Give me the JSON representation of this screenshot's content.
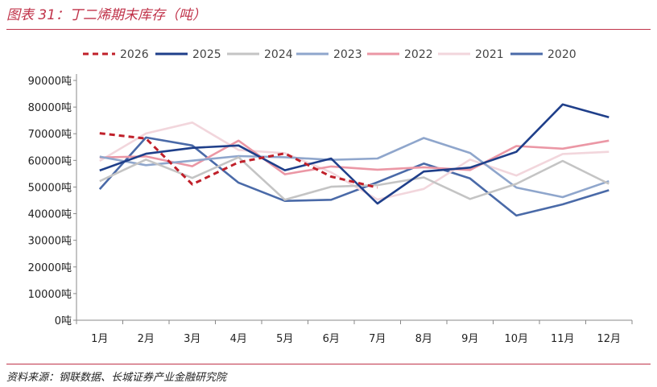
{
  "figure": {
    "title": "图表 31：丁二烯期末库存（吨）",
    "source": "资料来源：钢联数据、长城证券产业金融研究院"
  },
  "colors": {
    "title_red": "#c0334a",
    "s2026": "#c0202a",
    "s2025": "#1f3f8a",
    "s2024": "#c4c4c4",
    "s2023": "#8fa6cc",
    "s2022": "#eb97a5",
    "s2021": "#f2d6dc",
    "s2020": "#4a6aa8"
  },
  "chart_data": {
    "type": "line",
    "xlabel": "",
    "ylabel": "",
    "categories": [
      "1月",
      "2月",
      "3月",
      "4月",
      "5月",
      "6月",
      "7月",
      "8月",
      "9月",
      "10月",
      "11月",
      "12月"
    ],
    "ylim": [
      0,
      90000
    ],
    "yticks": [
      0,
      10000,
      20000,
      30000,
      40000,
      50000,
      60000,
      70000,
      80000,
      90000
    ],
    "ytick_suffix": "吨",
    "legend_position": "top",
    "series": [
      {
        "name": "2026",
        "color": "#c0202a",
        "dashed": true,
        "values": [
          70200,
          68200,
          null,
          null,
          null,
          null,
          null,
          null,
          null,
          null,
          null,
          null
        ]
      },
      {
        "name": "2025",
        "color": "#1f3f8a",
        "values": [
          56200,
          62500,
          64700,
          65600,
          56300,
          60700,
          43800,
          55800,
          57300,
          63200,
          81000,
          76200
        ]
      },
      {
        "name": "2024",
        "color": "#c4c4c4",
        "values": [
          52200,
          60300,
          53400,
          61200,
          45200,
          50100,
          50700,
          53600,
          45500,
          51200,
          59800,
          51200
        ]
      },
      {
        "name": "2023",
        "color": "#8fa6cc",
        "values": [
          61400,
          58200,
          59900,
          61600,
          61200,
          60200,
          60700,
          68400,
          62800,
          49800,
          46200,
          52200
        ]
      },
      {
        "name": "2022",
        "color": "#eb97a5",
        "values": [
          61100,
          61500,
          57800,
          67400,
          54800,
          57700,
          56500,
          57400,
          56400,
          65400,
          64400,
          67400
        ]
      },
      {
        "name": "2021",
        "color": "#f2d6dc",
        "values": [
          59800,
          70100,
          74200,
          63900,
          62700,
          55500,
          45300,
          49300,
          60300,
          54300,
          62400,
          63200
        ]
      },
      {
        "name": "2020",
        "color": "#4a6aa8",
        "values": [
          49200,
          68600,
          65600,
          51600,
          44800,
          45200,
          51800,
          58800,
          53200,
          39300,
          43500,
          48800
        ]
      }
    ],
    "extra_series_segments": [
      {
        "series": "2026",
        "from_month_index": 1,
        "points": [
          [
            2,
            51000
          ],
          [
            3,
            59300
          ],
          [
            4,
            62600
          ],
          [
            5,
            53900
          ],
          [
            6,
            49800
          ]
        ]
      }
    ]
  }
}
